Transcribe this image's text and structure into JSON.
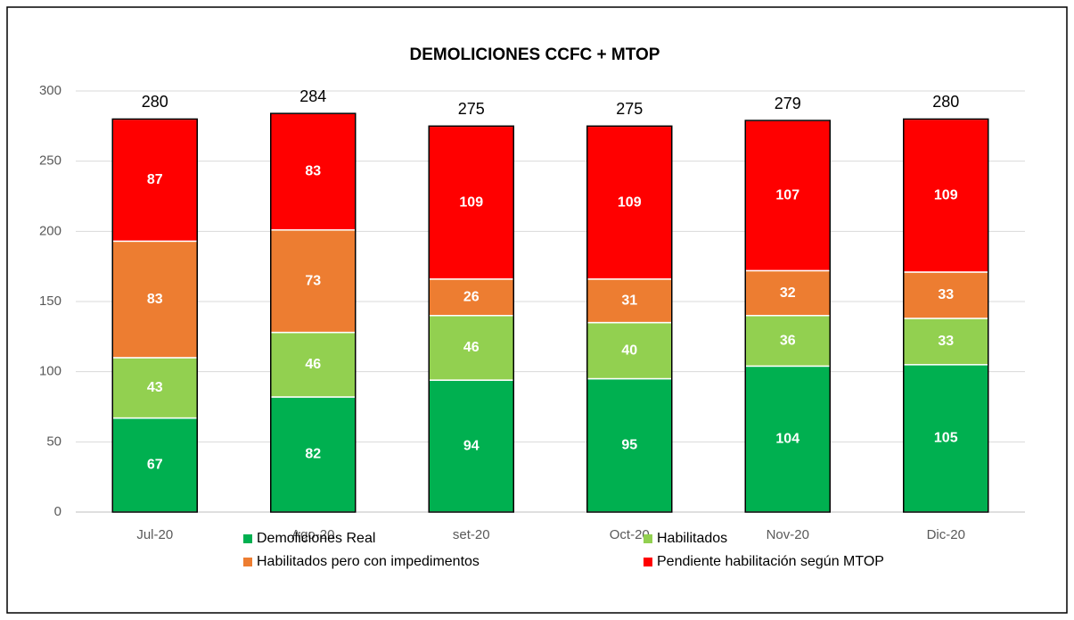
{
  "chart_data": {
    "type": "stacked_bar",
    "title": "DEMOLICIONES CCFC + MTOP",
    "categories": [
      "Jul-20",
      "Ago-20",
      "set-20",
      "Oct-20",
      "Nov-20",
      "Dic-20"
    ],
    "series": [
      {
        "name": "Demoliciones Real",
        "color": "#00b050",
        "values": [
          67,
          82,
          94,
          95,
          104,
          105
        ]
      },
      {
        "name": "Habilitados",
        "color": "#92d050",
        "values": [
          43,
          46,
          46,
          40,
          36,
          33
        ]
      },
      {
        "name": "Habilitados pero con impedimentos",
        "color": "#ed7d31",
        "values": [
          83,
          73,
          26,
          31,
          32,
          33
        ]
      },
      {
        "name": "Pendiente habilitación según MTOP",
        "color": "#ff0000",
        "values": [
          87,
          83,
          109,
          109,
          107,
          109
        ]
      }
    ],
    "totals": [
      280,
      284,
      275,
      275,
      279,
      280
    ],
    "ylim": [
      0,
      300
    ],
    "yticks": [
      0,
      50,
      100,
      150,
      200,
      250,
      300
    ],
    "grid": true,
    "legend": "bottom"
  }
}
